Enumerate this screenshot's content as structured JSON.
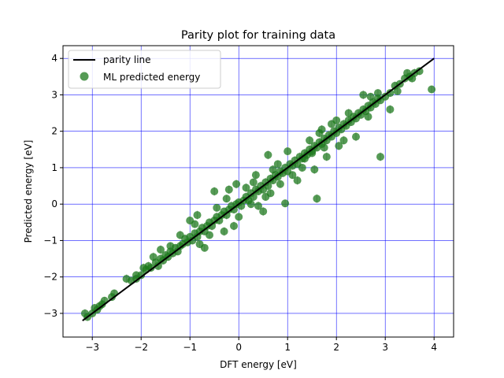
{
  "chart_data": {
    "type": "scatter",
    "title": "Parity plot for training data",
    "xlabel": "DFT energy [eV]",
    "ylabel": "Predicted energy [eV]",
    "xlim": [
      -3.6,
      4.4
    ],
    "ylim": [
      -3.65,
      4.35
    ],
    "xticks": [
      -3,
      -2,
      -1,
      0,
      1,
      2,
      3,
      4
    ],
    "yticks": [
      -3,
      -2,
      -1,
      0,
      1,
      2,
      3,
      4
    ],
    "xtick_labels": [
      "−3",
      "−2",
      "−1",
      "0",
      "1",
      "2",
      "3",
      "4"
    ],
    "ytick_labels": [
      "−3",
      "−2",
      "−1",
      "0",
      "1",
      "2",
      "3",
      "4"
    ],
    "grid": true,
    "grid_color": "#0000ff",
    "legend_position": "top-left",
    "legend": [
      "parity line",
      "ML predicted energy"
    ],
    "series": [
      {
        "name": "parity line",
        "kind": "line",
        "color": "#000000",
        "x": [
          -3.2,
          4.0
        ],
        "y": [
          -3.2,
          4.0
        ]
      },
      {
        "name": "ML predicted energy",
        "kind": "scatter",
        "color": "#1e7a1e",
        "errorbar_color": "#aaaaaa",
        "points": [
          [
            -3.15,
            -3.0,
            0.12
          ],
          [
            -3.1,
            -3.1,
            0.1
          ],
          [
            -3.0,
            -3.0,
            0.12
          ],
          [
            -2.95,
            -2.85,
            0.1
          ],
          [
            -2.9,
            -2.9,
            0.1
          ],
          [
            -2.85,
            -2.8,
            0.1
          ],
          [
            -2.8,
            -2.75,
            0.12
          ],
          [
            -2.75,
            -2.65,
            0.1
          ],
          [
            -2.6,
            -2.55,
            0.1
          ],
          [
            -2.55,
            -2.45,
            0.1
          ],
          [
            -2.3,
            -2.05,
            0.12
          ],
          [
            -2.2,
            -2.1,
            0.1
          ],
          [
            -2.1,
            -2.05,
            0.1
          ],
          [
            -2.0,
            -1.95,
            0.1
          ],
          [
            -1.95,
            -1.75,
            0.12
          ],
          [
            -1.9,
            -1.8,
            0.1
          ],
          [
            -1.85,
            -1.7,
            0.12
          ],
          [
            -1.8,
            -1.75,
            0.1
          ],
          [
            -1.7,
            -1.6,
            0.1
          ],
          [
            -1.65,
            -1.7,
            0.1
          ],
          [
            -1.6,
            -1.5,
            0.12
          ],
          [
            -1.55,
            -1.55,
            0.1
          ],
          [
            -1.5,
            -1.4,
            0.12
          ],
          [
            -1.45,
            -1.45,
            0.1
          ],
          [
            -1.4,
            -1.3,
            0.1
          ],
          [
            -1.35,
            -1.35,
            0.12
          ],
          [
            -1.3,
            -1.2,
            0.1
          ],
          [
            -1.25,
            -1.3,
            0.1
          ],
          [
            -1.2,
            -1.15,
            0.12
          ],
          [
            -1.15,
            -1.1,
            0.1
          ],
          [
            -1.1,
            -0.95,
            0.12
          ],
          [
            -1.05,
            -1.05,
            0.1
          ],
          [
            -1.0,
            -0.9,
            0.12
          ],
          [
            -0.95,
            -1.0,
            0.1
          ],
          [
            -0.9,
            -0.8,
            0.1
          ],
          [
            -0.85,
            -0.9,
            0.12
          ],
          [
            -0.8,
            -0.75,
            0.1
          ],
          [
            -0.75,
            -0.65,
            0.12
          ],
          [
            -0.7,
            -0.75,
            0.1
          ],
          [
            -0.65,
            -0.6,
            0.12
          ],
          [
            -0.6,
            -0.5,
            0.1
          ],
          [
            -0.55,
            -0.6,
            0.12
          ],
          [
            -0.5,
            -0.45,
            0.1
          ],
          [
            -0.45,
            -0.35,
            0.12
          ],
          [
            -0.4,
            -0.45,
            0.1
          ],
          [
            -0.35,
            -0.3,
            0.12
          ],
          [
            -0.3,
            -0.2,
            0.1
          ],
          [
            -0.25,
            -0.3,
            0.12
          ],
          [
            -0.2,
            -0.15,
            0.1
          ],
          [
            -0.15,
            -0.05,
            0.12
          ],
          [
            -0.1,
            -0.15,
            0.1
          ],
          [
            -0.05,
            0.0,
            0.12
          ],
          [
            0.0,
            0.05,
            0.1
          ],
          [
            0.05,
            -0.05,
            0.12
          ],
          [
            0.1,
            0.1,
            0.1
          ],
          [
            0.15,
            0.2,
            0.12
          ],
          [
            0.2,
            0.1,
            0.1
          ],
          [
            0.25,
            0.3,
            0.12
          ],
          [
            0.3,
            0.2,
            0.1
          ],
          [
            0.35,
            0.4,
            0.12
          ],
          [
            0.4,
            0.35,
            0.1
          ],
          [
            0.45,
            0.5,
            0.12
          ],
          [
            0.5,
            0.4,
            0.1
          ],
          [
            0.55,
            0.6,
            0.12
          ],
          [
            0.6,
            0.5,
            0.1
          ],
          [
            0.65,
            0.7,
            0.12
          ],
          [
            0.7,
            0.65,
            0.1
          ],
          [
            0.75,
            0.8,
            0.12
          ],
          [
            0.8,
            0.75,
            0.1
          ],
          [
            0.85,
            0.9,
            0.12
          ],
          [
            0.9,
            0.85,
            0.1
          ],
          [
            0.95,
            1.0,
            0.12
          ],
          [
            1.0,
            0.9,
            0.1
          ],
          [
            1.05,
            1.1,
            0.12
          ],
          [
            1.1,
            1.05,
            0.1
          ],
          [
            1.15,
            1.2,
            0.12
          ],
          [
            1.2,
            1.1,
            0.1
          ],
          [
            1.25,
            1.3,
            0.12
          ],
          [
            1.3,
            1.25,
            0.1
          ],
          [
            1.35,
            1.4,
            0.12
          ],
          [
            1.4,
            1.35,
            0.1
          ],
          [
            1.45,
            1.5,
            0.12
          ],
          [
            1.5,
            1.45,
            0.1
          ],
          [
            1.55,
            1.6,
            0.12
          ],
          [
            1.6,
            1.55,
            0.1
          ],
          [
            1.65,
            1.7,
            0.12
          ],
          [
            1.7,
            1.65,
            0.1
          ],
          [
            1.75,
            1.8,
            0.12
          ],
          [
            1.8,
            1.75,
            0.1
          ],
          [
            1.85,
            1.9,
            0.12
          ],
          [
            1.9,
            1.85,
            0.1
          ],
          [
            1.95,
            2.0,
            0.12
          ],
          [
            2.0,
            1.95,
            0.1
          ],
          [
            2.05,
            2.1,
            0.12
          ],
          [
            2.1,
            2.05,
            0.1
          ],
          [
            2.15,
            2.2,
            0.12
          ],
          [
            2.2,
            2.15,
            0.1
          ],
          [
            2.25,
            2.3,
            0.12
          ],
          [
            2.3,
            2.25,
            0.1
          ],
          [
            2.35,
            2.4,
            0.12
          ],
          [
            2.4,
            2.35,
            0.1
          ],
          [
            2.45,
            2.5,
            0.12
          ],
          [
            2.5,
            2.45,
            0.1
          ],
          [
            2.55,
            2.6,
            0.12
          ],
          [
            2.6,
            2.55,
            0.1
          ],
          [
            2.65,
            2.7,
            0.12
          ],
          [
            2.7,
            2.65,
            0.1
          ],
          [
            2.75,
            2.8,
            0.12
          ],
          [
            2.8,
            2.75,
            0.1
          ],
          [
            2.85,
            2.9,
            0.12
          ],
          [
            2.9,
            2.85,
            0.1
          ],
          [
            3.0,
            2.95,
            0.12
          ],
          [
            3.1,
            3.05,
            0.1
          ],
          [
            3.2,
            3.25,
            0.12
          ],
          [
            3.3,
            3.3,
            0.1
          ],
          [
            3.4,
            3.45,
            0.12
          ],
          [
            3.5,
            3.5,
            0.1
          ],
          [
            3.6,
            3.6,
            0.12
          ],
          [
            3.7,
            3.65,
            0.1
          ],
          [
            3.55,
            3.45,
            0.1
          ],
          [
            3.95,
            3.15,
            0.1
          ],
          [
            2.9,
            1.3,
            0.12
          ],
          [
            1.6,
            0.15,
            0.12
          ],
          [
            0.95,
            0.02,
            0.1
          ],
          [
            1.2,
            0.65,
            0.12
          ],
          [
            0.5,
            -0.2,
            0.12
          ],
          [
            -0.2,
            0.4,
            0.12
          ],
          [
            -0.5,
            0.35,
            0.12
          ],
          [
            0.55,
            0.2,
            0.1
          ],
          [
            -0.1,
            -0.6,
            0.12
          ],
          [
            -0.85,
            -0.3,
            0.12
          ],
          [
            0.7,
            0.95,
            0.12
          ],
          [
            1.35,
            1.25,
            0.12
          ],
          [
            1.55,
            0.95,
            0.12
          ],
          [
            2.15,
            1.75,
            0.12
          ],
          [
            2.4,
            1.85,
            0.12
          ],
          [
            1.5,
            1.4,
            0.1
          ],
          [
            3.1,
            2.6,
            0.12
          ],
          [
            2.55,
            3.0,
            0.12
          ],
          [
            2.0,
            2.3,
            0.12
          ],
          [
            -1.0,
            -0.45,
            0.12
          ],
          [
            0.35,
            0.8,
            0.12
          ],
          [
            -0.05,
            0.55,
            0.12
          ],
          [
            0.6,
            1.35,
            0.12
          ],
          [
            1.0,
            1.45,
            0.12
          ],
          [
            1.7,
            2.05,
            0.12
          ],
          [
            2.65,
            2.4,
            0.1
          ],
          [
            -0.3,
            -0.75,
            0.12
          ],
          [
            -0.7,
            -1.2,
            0.1
          ],
          [
            0.85,
            0.55,
            0.1
          ],
          [
            1.8,
            1.3,
            0.12
          ],
          [
            2.25,
            2.5,
            0.12
          ],
          [
            0.25,
            0.0,
            0.1
          ],
          [
            -1.4,
            -1.15,
            0.1
          ],
          [
            -1.75,
            -1.45,
            0.12
          ],
          [
            1.45,
            1.75,
            0.12
          ],
          [
            0.15,
            0.45,
            0.12
          ],
          [
            -0.45,
            -0.1,
            0.1
          ],
          [
            2.85,
            3.05,
            0.1
          ],
          [
            3.25,
            3.1,
            0.1
          ],
          [
            3.45,
            3.6,
            0.1
          ],
          [
            0.4,
            -0.05,
            0.12
          ],
          [
            -0.6,
            -0.85,
            0.1
          ],
          [
            1.1,
            0.8,
            0.1
          ],
          [
            1.65,
            1.95,
            0.12
          ],
          [
            -1.2,
            -0.85,
            0.12
          ],
          [
            0.8,
            1.1,
            0.1
          ],
          [
            2.05,
            1.6,
            0.12
          ],
          [
            -0.25,
            0.15,
            0.1
          ],
          [
            0.0,
            -0.35,
            0.1
          ],
          [
            1.3,
            1.0,
            0.1
          ],
          [
            1.9,
            2.2,
            0.12
          ],
          [
            2.7,
            2.95,
            0.1
          ],
          [
            -0.9,
            -0.55,
            0.1
          ],
          [
            0.65,
            0.3,
            0.1
          ],
          [
            -1.6,
            -1.25,
            0.12
          ],
          [
            -2.1,
            -1.95,
            0.1
          ],
          [
            -0.8,
            -1.1,
            0.1
          ],
          [
            0.3,
            0.6,
            0.1
          ],
          [
            1.75,
            1.55,
            0.1
          ]
        ]
      }
    ]
  }
}
